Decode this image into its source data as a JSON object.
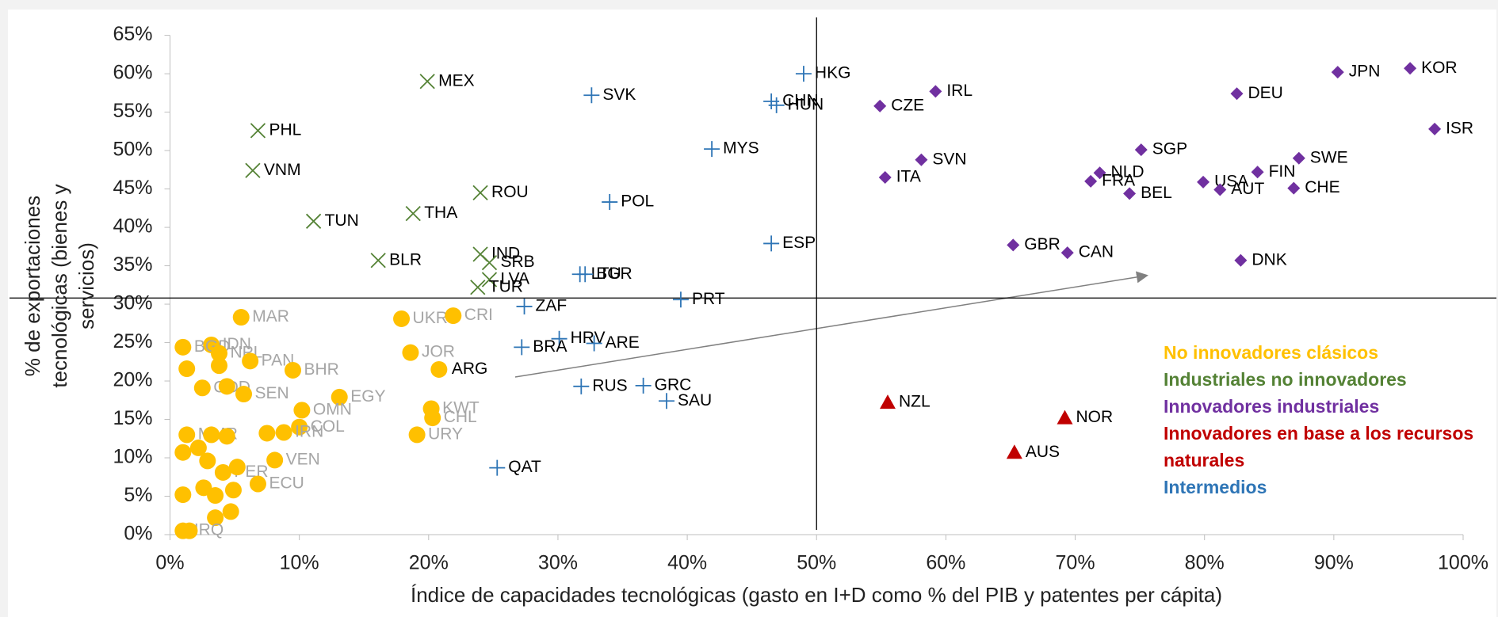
{
  "chart_data": {
    "type": "scatter",
    "x_label": "Índice de capacidades tecnológicas (gasto en I+D como % del PIB y patentes per cápita)",
    "y_label": "% de exportaciones tecnológicas (bienes y servicios)",
    "xlim": [
      0,
      100
    ],
    "ylim": [
      0,
      65
    ],
    "xticks": [
      {
        "value": 0,
        "label": "0%"
      },
      {
        "value": 10,
        "label": "10%"
      },
      {
        "value": 20,
        "label": "20%"
      },
      {
        "value": 30,
        "label": "30%"
      },
      {
        "value": 40,
        "label": "40%"
      },
      {
        "value": 50,
        "label": "50%"
      },
      {
        "value": 60,
        "label": "60%"
      },
      {
        "value": 70,
        "label": "70%"
      },
      {
        "value": 80,
        "label": "80%"
      },
      {
        "value": 90,
        "label": "90%"
      },
      {
        "value": 100,
        "label": "100%"
      }
    ],
    "yticks": [
      {
        "value": 0,
        "label": "0%"
      },
      {
        "value": 5,
        "label": "5%"
      },
      {
        "value": 10,
        "label": "10%"
      },
      {
        "value": 15,
        "label": "15%"
      },
      {
        "value": 20,
        "label": "20%"
      },
      {
        "value": 25,
        "label": "25%"
      },
      {
        "value": 30,
        "label": "30%"
      },
      {
        "value": 35,
        "label": "35%"
      },
      {
        "value": 40,
        "label": "40%"
      },
      {
        "value": 45,
        "label": "45%"
      },
      {
        "value": 50,
        "label": "50%"
      },
      {
        "value": 55,
        "label": "55%"
      },
      {
        "value": 60,
        "label": "60%"
      },
      {
        "value": 65,
        "label": "65%"
      }
    ],
    "reference_lines": {
      "x": 50,
      "y": 30.8
    },
    "highlight": "ARG",
    "series": [
      {
        "name": "No innovadores clásicos",
        "color": "#ffc000",
        "marker": "circle",
        "label_color": "#a6a6a6",
        "x": [
          5.5,
          3.2,
          1.0,
          3.8,
          6.2,
          1.3,
          3.8,
          2.5,
          4.4,
          5.7,
          9.5,
          17.9,
          21.9,
          18.6,
          20.8,
          13.1,
          20.2,
          20.3,
          19.1,
          10.2,
          10.0,
          8.8,
          7.5,
          8.1,
          1.3,
          3.2,
          4.4,
          2.2,
          1.0,
          2.9,
          4.1,
          5.2,
          6.8,
          2.6,
          4.9,
          1.0,
          3.5,
          4.7,
          3.5,
          1.0,
          1.5
        ],
        "y": [
          28.3,
          24.7,
          24.4,
          23.6,
          22.6,
          21.6,
          22.0,
          19.1,
          19.3,
          18.3,
          21.4,
          28.1,
          28.5,
          23.7,
          21.5,
          17.9,
          16.4,
          15.2,
          13.0,
          16.2,
          14.0,
          13.3,
          13.2,
          9.7,
          13.0,
          13.0,
          12.8,
          11.3,
          10.7,
          9.6,
          8.1,
          8.8,
          6.6,
          6.1,
          5.8,
          5.2,
          5.1,
          3.0,
          2.2,
          0.5,
          0.5
        ],
        "labels": [
          "MAR",
          "IDN",
          "BGD",
          "NPL",
          "PAN",
          null,
          null,
          "COD",
          null,
          "SEN",
          "BHR",
          "UKR",
          "CRI",
          "JOR",
          "ARG",
          "EGY",
          "KWT",
          "CHL",
          "URY",
          "OMN",
          "COL",
          "IRN",
          null,
          "VEN",
          "MMR",
          null,
          null,
          null,
          null,
          null,
          "PER",
          null,
          "ECU",
          null,
          null,
          null,
          null,
          null,
          null,
          "IRQ",
          null
        ]
      },
      {
        "name": "Industriales no innovadores",
        "color": "#548235",
        "marker": "x",
        "label_color": "#000000",
        "x": [
          19.9,
          6.8,
          6.4,
          11.1,
          18.8,
          24.0,
          16.1,
          24.0,
          24.7,
          24.7,
          23.8
        ],
        "y": [
          59.0,
          52.6,
          47.4,
          40.8,
          41.8,
          44.5,
          35.7,
          36.5,
          35.4,
          33.2,
          32.2
        ],
        "labels": [
          "MEX",
          "PHL",
          "VNM",
          "TUN",
          "THA",
          "ROU",
          "BLR",
          "IND",
          "SRB",
          "LVA",
          "TUR"
        ]
      },
      {
        "name": "Innovadores industriales",
        "color": "#7030a0",
        "marker": "diamond",
        "label_color": "#000000",
        "x": [
          90.3,
          95.9,
          82.5,
          97.8,
          59.2,
          54.9,
          58.1,
          55.3,
          75.1,
          87.3,
          84.1,
          79.9,
          71.9,
          71.2,
          74.2,
          81.2,
          86.9,
          65.2,
          69.4,
          82.8
        ],
        "y": [
          60.2,
          60.7,
          57.4,
          52.8,
          57.7,
          55.8,
          48.8,
          46.5,
          50.1,
          49.0,
          47.2,
          45.9,
          47.1,
          46.0,
          44.4,
          44.9,
          45.1,
          37.7,
          36.7,
          35.7
        ],
        "labels": [
          "JPN",
          "KOR",
          "DEU",
          "ISR",
          "IRL",
          "CZE",
          "SVN",
          "ITA",
          "SGP",
          "SWE",
          "FIN",
          "USA",
          "NLD",
          "FRA",
          "BEL",
          "AUT",
          "CHE",
          "GBR",
          "CAN",
          "DNK"
        ]
      },
      {
        "name": "Innovadores en base a los recursos naturales",
        "color": "#c00000",
        "marker": "triangle",
        "label_color": "#000000",
        "x": [
          55.5,
          69.2,
          65.3
        ],
        "y": [
          17.2,
          15.2,
          10.7
        ],
        "labels": [
          "NZL",
          "NOR",
          "AUS"
        ]
      },
      {
        "name": "Intermedios",
        "color": "#2e75b6",
        "marker": "plus",
        "label_color": "#000000",
        "x": [
          32.6,
          49.0,
          46.5,
          46.9,
          41.9,
          34.0,
          46.5,
          31.7,
          32.1,
          39.5,
          27.4,
          30.1,
          32.8,
          27.2,
          36.6,
          38.4,
          31.8,
          25.3
        ],
        "y": [
          57.2,
          60.0,
          56.4,
          55.9,
          50.2,
          43.3,
          37.9,
          33.9,
          33.9,
          30.6,
          29.7,
          25.5,
          24.9,
          24.4,
          19.4,
          17.4,
          19.3,
          8.7
        ],
        "labels": [
          "SVK",
          "HKG",
          "CHN",
          "HUN",
          "MYS",
          "POL",
          "ESP",
          "LTU",
          "BGR",
          "PRT",
          "ZAF",
          "HRV",
          "ARE",
          "BRA",
          "GRC",
          "SAU",
          "RUS",
          "QAT"
        ]
      }
    ]
  }
}
